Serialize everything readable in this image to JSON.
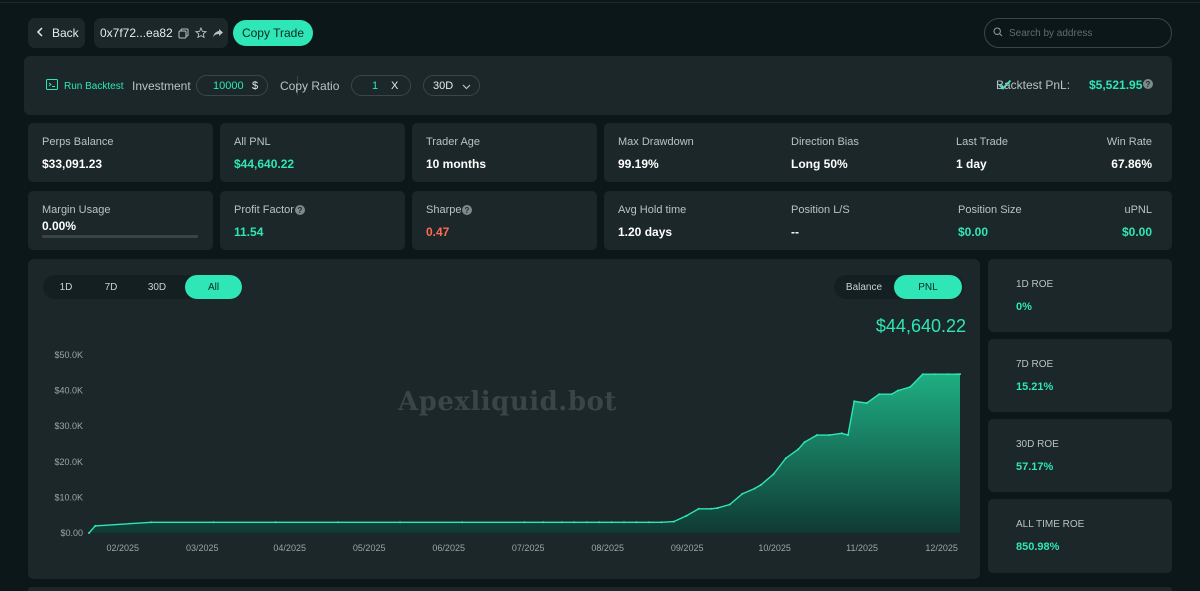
{
  "header": {
    "back_label": "Back",
    "address": "0x7f72...ea82",
    "copy_trade_label": "Copy Trade",
    "search_placeholder": "Search by address"
  },
  "backtest": {
    "run_label": "Run Backtest",
    "investment_label": "Investment",
    "investment_value": "10000",
    "investment_unit": "$",
    "copy_ratio_label": "Copy Ratio",
    "copy_ratio_value": "1",
    "copy_ratio_unit": "X",
    "period_selected": "30D",
    "pnl_label": "Backtest PnL:",
    "pnl_value": "$5,521.95"
  },
  "stats": {
    "perps_balance": {
      "label": "Perps Balance",
      "value": "$33,091.23"
    },
    "all_pnl": {
      "label": "All PNL",
      "value": "$44,640.22"
    },
    "trader_age": {
      "label": "Trader Age",
      "value": "10 months"
    },
    "max_drawdown": {
      "label": "Max Drawdown",
      "value": "99.19%"
    },
    "direction_bias": {
      "label": "Direction Bias",
      "value": "Long 50%"
    },
    "last_trade": {
      "label": "Last Trade",
      "value": "1 day"
    },
    "win_rate": {
      "label": "Win Rate",
      "value": "67.86%"
    },
    "margin_usage": {
      "label": "Margin Usage",
      "value": "0.00%",
      "fraction": 0
    },
    "profit_factor": {
      "label": "Profit Factor",
      "value": "11.54"
    },
    "sharpe": {
      "label": "Sharpe",
      "value": "0.47"
    },
    "avg_hold": {
      "label": "Avg Hold time",
      "value": "1.20 days"
    },
    "position_ls": {
      "label": "Position L/S",
      "value": "--"
    },
    "position_size": {
      "label": "Position Size",
      "value": "$0.00"
    },
    "upnl": {
      "label": "uPNL",
      "value": "$0.00"
    }
  },
  "chart_panel": {
    "range_tabs": [
      "1D",
      "7D",
      "30D",
      "All"
    ],
    "range_selected": "All",
    "mode_tabs": [
      "Balance",
      "PNL"
    ],
    "mode_selected": "PNL",
    "current_value": "$44,640.22",
    "watermark": "Apexliquid.bot"
  },
  "chart_data": {
    "type": "area",
    "y_tick_labels": [
      "$0.00",
      "$10.0K",
      "$20.0K",
      "$30.0K",
      "$40.0K",
      "$50.0K"
    ],
    "ylim": [
      0,
      50000
    ],
    "x_tick_labels": [
      "02/2025",
      "03/2025",
      "04/2025",
      "05/2025",
      "06/2025",
      "07/2025",
      "08/2025",
      "09/2025",
      "10/2025",
      "11/2025",
      "12/2025"
    ],
    "x": [
      0,
      0.1,
      1,
      2,
      3,
      4,
      5,
      6,
      7,
      7.3,
      7.6,
      7.8,
      8.0,
      8.2,
      8.4,
      8.6,
      8.8,
      9.0,
      9.2,
      9.4,
      9.6,
      9.8,
      10.0,
      10.1,
      10.3,
      10.5,
      10.7,
      10.8,
      11.0,
      11.2,
      11.4,
      11.5,
      11.5,
      11.7,
      11.9,
      12.1,
      12.2,
      12.3,
      12.5,
      12.7,
      12.9,
      13.0,
      13.2,
      13.4,
      13.6,
      13.8,
      13.95,
      14.0
    ],
    "values": [
      0,
      2000,
      3000,
      3000,
      3000,
      3000,
      3000,
      3000,
      3000,
      3000,
      3000,
      3000,
      3000,
      3000,
      3000,
      3000,
      3000,
      3000,
      3000,
      3200,
      4800,
      6800,
      6800,
      7000,
      8000,
      11000,
      12500,
      13500,
      16500,
      21000,
      23500,
      25500,
      25500,
      27500,
      27500,
      28000,
      27500,
      37000,
      36500,
      39000,
      39000,
      40000,
      41000,
      44600,
      44600,
      44600,
      44600,
      44640
    ],
    "grid": false,
    "legend": "none",
    "line_color": "#2ee6b6",
    "fill_top_color": "#1fae82",
    "fill_bottom_color": "#0f3a33"
  },
  "roe": [
    {
      "label": "1D ROE",
      "value": "0%"
    },
    {
      "label": "7D ROE",
      "value": "15.21%"
    },
    {
      "label": "30D ROE",
      "value": "57.17%"
    },
    {
      "label": "ALL TIME ROE",
      "value": "850.98%"
    }
  ]
}
